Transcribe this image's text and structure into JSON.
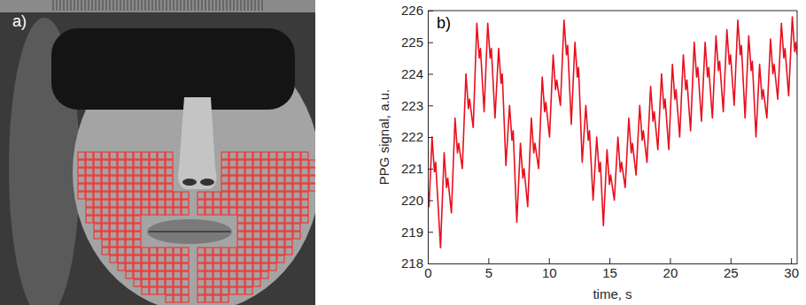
{
  "image_panel": {
    "label": "a)"
  },
  "chart_data": {
    "type": "line",
    "panel_label": "b)",
    "x_label": "time, s",
    "y_label": "PPG signal, a.u.",
    "color": "#e8101e",
    "grid": false,
    "xlim": [
      0,
      30.5
    ],
    "xticks": [
      0,
      5,
      10,
      15,
      20,
      25,
      30
    ],
    "ylim": [
      218,
      226
    ],
    "yticks": [
      218,
      219,
      220,
      221,
      222,
      223,
      224,
      225,
      226
    ],
    "x": [
      0,
      0.1,
      0.35,
      0.55,
      0.65,
      1.05,
      1.35,
      1.55,
      1.65,
      1.95,
      2.25,
      2.45,
      2.55,
      2.85,
      3.15,
      3.35,
      3.45,
      3.75,
      4.05,
      4.25,
      4.35,
      4.65,
      4.95,
      5.15,
      5.25,
      5.55,
      5.85,
      6.05,
      6.15,
      6.45,
      6.75,
      6.95,
      7.05,
      7.35,
      7.65,
      7.85,
      7.95,
      8.25,
      8.55,
      8.75,
      8.85,
      9.15,
      9.45,
      9.65,
      9.75,
      10.05,
      10.35,
      10.55,
      10.65,
      10.95,
      11.25,
      11.45,
      11.55,
      11.85,
      12.15,
      12.35,
      12.45,
      12.75,
      13.05,
      13.25,
      13.35,
      13.65,
      13.95,
      14.15,
      14.25,
      14.5,
      14.8,
      15.0,
      15.1,
      15.4,
      15.7,
      15.9,
      16.0,
      16.3,
      16.6,
      16.8,
      16.9,
      17.2,
      17.5,
      17.7,
      17.8,
      18.1,
      18.4,
      18.6,
      18.7,
      19.0,
      19.3,
      19.5,
      19.6,
      19.9,
      20.2,
      20.4,
      20.5,
      20.8,
      21.1,
      21.3,
      21.4,
      21.7,
      22.0,
      22.2,
      22.3,
      22.6,
      22.9,
      23.1,
      23.2,
      23.5,
      23.8,
      24.0,
      24.1,
      24.4,
      24.7,
      24.9,
      25.0,
      25.3,
      25.6,
      25.8,
      25.9,
      26.2,
      26.5,
      26.7,
      26.8,
      27.1,
      27.4,
      27.6,
      27.7,
      28.0,
      28.3,
      28.5,
      28.6,
      28.9,
      29.2,
      29.4,
      29.5,
      29.8,
      30.1,
      30.3,
      30.4,
      30.5
    ],
    "values": [
      220.4,
      219.8,
      222.0,
      220.9,
      221.2,
      218.5,
      221.5,
      220.4,
      220.7,
      219.6,
      222.6,
      221.5,
      221.8,
      221.0,
      224.0,
      222.9,
      223.2,
      222.3,
      225.6,
      224.5,
      224.8,
      222.8,
      225.6,
      224.5,
      224.8,
      222.6,
      224.8,
      223.7,
      224.0,
      221.1,
      223.0,
      221.9,
      222.2,
      219.3,
      221.8,
      220.7,
      221.0,
      219.8,
      222.6,
      221.5,
      221.8,
      221.0,
      223.9,
      222.8,
      223.1,
      222.0,
      224.6,
      223.5,
      223.8,
      223.0,
      225.7,
      224.6,
      224.9,
      222.4,
      225.0,
      223.9,
      224.2,
      221.2,
      223.0,
      221.9,
      222.2,
      220.0,
      222.0,
      220.9,
      221.2,
      219.2,
      221.6,
      220.5,
      220.8,
      220.0,
      222.0,
      220.9,
      221.2,
      220.4,
      222.6,
      221.5,
      221.8,
      220.8,
      223.0,
      221.9,
      222.2,
      221.2,
      223.6,
      222.5,
      222.8,
      221.6,
      224.0,
      222.9,
      223.2,
      221.6,
      224.3,
      223.2,
      223.5,
      222.0,
      224.6,
      223.5,
      223.8,
      222.2,
      225.0,
      223.9,
      224.2,
      222.5,
      225.0,
      223.9,
      224.2,
      222.6,
      225.2,
      224.1,
      224.4,
      222.8,
      225.4,
      224.3,
      224.6,
      223.0,
      225.7,
      224.6,
      224.9,
      222.6,
      225.2,
      224.1,
      224.4,
      222.0,
      224.3,
      223.2,
      223.5,
      222.6,
      225.1,
      224.0,
      224.3,
      223.2,
      225.6,
      224.5,
      224.8,
      223.3,
      225.8,
      224.7,
      225.0,
      224.6
    ]
  }
}
